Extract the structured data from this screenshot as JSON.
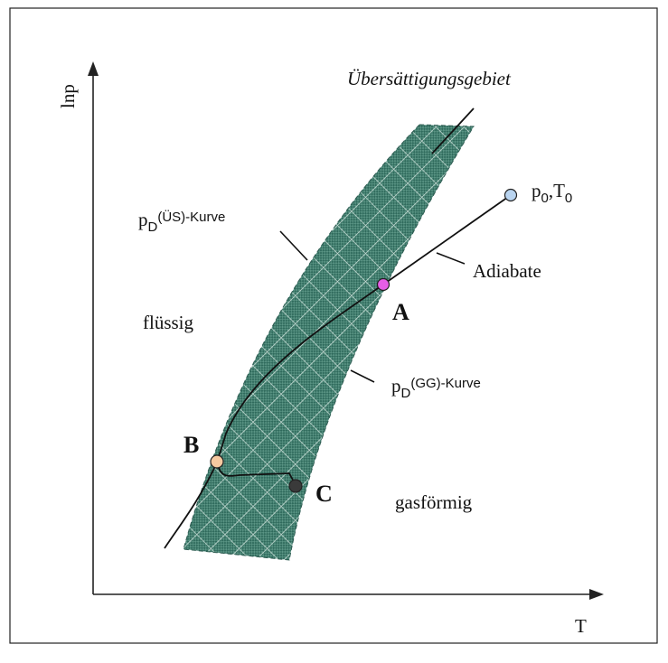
{
  "axes": {
    "y_label": "lnp",
    "x_label": "T"
  },
  "regions": {
    "supersaturation": "Übersättigungsgebiet",
    "liquid": "flüssig",
    "gas": "gasförmig"
  },
  "curves": {
    "us_curve": {
      "p": "p",
      "sub": "D",
      "rest": "(ÜS)-Kurve"
    },
    "gg_curve": {
      "p": "p",
      "sub": "D",
      "rest": "(GG)-Kurve"
    },
    "adiabate": "Adiabate"
  },
  "start_point": {
    "p": "p",
    "p_sub": "0",
    "sep": ",T",
    "t_sub": "0"
  },
  "points": {
    "a": "A",
    "b": "B",
    "c": "C"
  },
  "colors": {
    "band_fill": "#3f7f6f",
    "point_start": "#b9d4f0",
    "point_a": "#e65ee6",
    "point_b": "#f5c9a0",
    "point_c": "#3a3a3a"
  }
}
